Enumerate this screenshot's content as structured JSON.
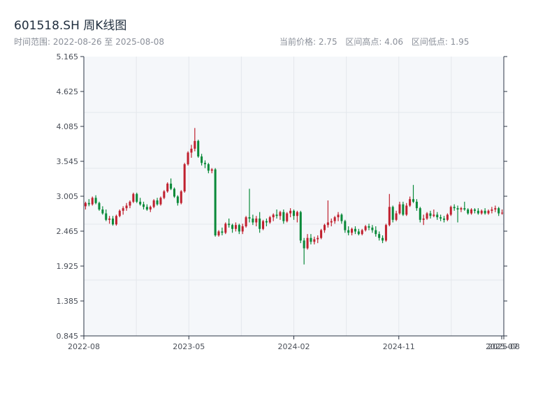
{
  "header": {
    "title": "601518.SH 周K线图",
    "range_text": "时间范围: 2022-08-26 至 2025-08-08",
    "current_price_text": "当前价格: 2.75",
    "range_high_text": "区间高点: 4.06",
    "range_low_text": "区间低点: 1.95"
  },
  "chart_data": {
    "type": "candlestick",
    "title": "601518.SH 周K线图",
    "ylim": [
      0.845,
      5.165
    ],
    "y_ticks": [
      "5.165",
      "4.625",
      "4.085",
      "3.545",
      "3.005",
      "2.465",
      "1.925",
      "1.385",
      "0.845"
    ],
    "x_ticks": [
      {
        "label": "2022-08",
        "t": 0.0
      },
      {
        "label": "2023-05",
        "t": 0.25
      },
      {
        "label": "2024-02",
        "t": 0.5
      },
      {
        "label": "2024-11",
        "t": 0.75
      },
      {
        "label": "2025-07",
        "t": 0.995
      },
      {
        "label": "2025-08",
        "t": 1.0
      }
    ],
    "grid": true,
    "colors": {
      "up": "#c0212f",
      "down": "#0a8a3a",
      "plot_bg": "#f5f7fa",
      "grid": "#e4e7ec",
      "axis": "#2b3445"
    },
    "candles": [
      [
        2.85,
        2.92,
        2.8,
        2.9
      ],
      [
        2.9,
        2.96,
        2.85,
        2.88
      ],
      [
        2.88,
        3.0,
        2.86,
        2.98
      ],
      [
        2.98,
        3.02,
        2.88,
        2.9
      ],
      [
        2.9,
        2.92,
        2.78,
        2.8
      ],
      [
        2.8,
        2.85,
        2.72,
        2.74
      ],
      [
        2.74,
        2.8,
        2.62,
        2.64
      ],
      [
        2.64,
        2.7,
        2.58,
        2.66
      ],
      [
        2.66,
        2.7,
        2.55,
        2.57
      ],
      [
        2.57,
        2.72,
        2.55,
        2.7
      ],
      [
        2.7,
        2.8,
        2.68,
        2.78
      ],
      [
        2.78,
        2.85,
        2.72,
        2.82
      ],
      [
        2.82,
        2.9,
        2.78,
        2.86
      ],
      [
        2.86,
        2.94,
        2.82,
        2.92
      ],
      [
        2.92,
        3.06,
        2.9,
        3.04
      ],
      [
        3.04,
        3.06,
        2.9,
        2.92
      ],
      [
        2.92,
        2.98,
        2.86,
        2.88
      ],
      [
        2.88,
        2.92,
        2.8,
        2.84
      ],
      [
        2.84,
        2.88,
        2.78,
        2.8
      ],
      [
        2.8,
        2.86,
        2.76,
        2.84
      ],
      [
        2.84,
        2.96,
        2.82,
        2.94
      ],
      [
        2.94,
        2.98,
        2.86,
        2.88
      ],
      [
        2.88,
        3.0,
        2.86,
        2.98
      ],
      [
        2.98,
        3.1,
        2.96,
        3.08
      ],
      [
        3.08,
        3.22,
        3.06,
        3.2
      ],
      [
        3.2,
        3.28,
        3.1,
        3.12
      ],
      [
        3.12,
        3.14,
        2.98,
        3.0
      ],
      [
        3.0,
        3.02,
        2.86,
        2.9
      ],
      [
        2.9,
        3.1,
        2.88,
        3.08
      ],
      [
        3.08,
        3.52,
        3.06,
        3.5
      ],
      [
        3.5,
        3.7,
        3.48,
        3.68
      ],
      [
        3.68,
        3.8,
        3.6,
        3.74
      ],
      [
        3.74,
        4.06,
        3.7,
        3.86
      ],
      [
        3.86,
        3.88,
        3.6,
        3.62
      ],
      [
        3.62,
        3.66,
        3.48,
        3.52
      ],
      [
        3.52,
        3.56,
        3.44,
        3.5
      ],
      [
        3.5,
        3.52,
        3.36,
        3.4
      ],
      [
        3.4,
        3.44,
        3.36,
        3.42
      ],
      [
        3.42,
        3.44,
        2.38,
        2.4
      ],
      [
        2.4,
        2.48,
        2.38,
        2.46
      ],
      [
        2.46,
        2.52,
        2.4,
        2.44
      ],
      [
        2.44,
        2.6,
        2.42,
        2.58
      ],
      [
        2.58,
        2.66,
        2.52,
        2.56
      ],
      [
        2.56,
        2.58,
        2.44,
        2.5
      ],
      [
        2.5,
        2.6,
        2.46,
        2.56
      ],
      [
        2.56,
        2.58,
        2.42,
        2.46
      ],
      [
        2.46,
        2.58,
        2.42,
        2.54
      ],
      [
        2.54,
        2.7,
        2.52,
        2.68
      ],
      [
        2.68,
        3.12,
        2.6,
        2.66
      ],
      [
        2.66,
        2.72,
        2.56,
        2.6
      ],
      [
        2.6,
        2.7,
        2.54,
        2.66
      ],
      [
        2.66,
        2.76,
        2.44,
        2.5
      ],
      [
        2.5,
        2.64,
        2.48,
        2.62
      ],
      [
        2.62,
        2.66,
        2.54,
        2.6
      ],
      [
        2.6,
        2.7,
        2.58,
        2.68
      ],
      [
        2.68,
        2.74,
        2.62,
        2.72
      ],
      [
        2.72,
        2.8,
        2.66,
        2.7
      ],
      [
        2.7,
        2.78,
        2.64,
        2.76
      ],
      [
        2.76,
        2.8,
        2.58,
        2.62
      ],
      [
        2.62,
        2.76,
        2.6,
        2.74
      ],
      [
        2.74,
        2.82,
        2.68,
        2.78
      ],
      [
        2.78,
        2.8,
        2.64,
        2.7
      ],
      [
        2.7,
        2.78,
        2.6,
        2.76
      ],
      [
        2.76,
        2.78,
        2.28,
        2.32
      ],
      [
        2.32,
        2.36,
        1.95,
        2.2
      ],
      [
        2.2,
        2.42,
        2.18,
        2.36
      ],
      [
        2.36,
        2.42,
        2.26,
        2.3
      ],
      [
        2.3,
        2.38,
        2.26,
        2.34
      ],
      [
        2.34,
        2.4,
        2.28,
        2.36
      ],
      [
        2.36,
        2.5,
        2.34,
        2.48
      ],
      [
        2.48,
        2.58,
        2.44,
        2.56
      ],
      [
        2.56,
        2.94,
        2.52,
        2.6
      ],
      [
        2.6,
        2.66,
        2.54,
        2.62
      ],
      [
        2.62,
        2.7,
        2.58,
        2.68
      ],
      [
        2.68,
        2.76,
        2.62,
        2.72
      ],
      [
        2.72,
        2.74,
        2.58,
        2.62
      ],
      [
        2.62,
        2.64,
        2.44,
        2.48
      ],
      [
        2.48,
        2.54,
        2.4,
        2.44
      ],
      [
        2.44,
        2.52,
        2.4,
        2.5
      ],
      [
        2.5,
        2.54,
        2.42,
        2.46
      ],
      [
        2.46,
        2.5,
        2.4,
        2.42
      ],
      [
        2.42,
        2.5,
        2.4,
        2.48
      ],
      [
        2.48,
        2.56,
        2.46,
        2.54
      ],
      [
        2.54,
        2.58,
        2.48,
        2.52
      ],
      [
        2.52,
        2.56,
        2.44,
        2.48
      ],
      [
        2.48,
        2.54,
        2.38,
        2.42
      ],
      [
        2.42,
        2.46,
        2.32,
        2.36
      ],
      [
        2.36,
        2.4,
        2.28,
        2.32
      ],
      [
        2.32,
        2.58,
        2.3,
        2.56
      ],
      [
        2.56,
        3.04,
        2.54,
        2.84
      ],
      [
        2.84,
        2.86,
        2.6,
        2.64
      ],
      [
        2.64,
        2.78,
        2.62,
        2.74
      ],
      [
        2.74,
        2.92,
        2.72,
        2.88
      ],
      [
        2.88,
        2.92,
        2.7,
        2.72
      ],
      [
        2.72,
        2.9,
        2.7,
        2.86
      ],
      [
        2.86,
        3.0,
        2.84,
        2.96
      ],
      [
        2.96,
        3.18,
        2.9,
        2.92
      ],
      [
        2.92,
        2.96,
        2.78,
        2.82
      ],
      [
        2.82,
        2.84,
        2.6,
        2.64
      ],
      [
        2.64,
        2.72,
        2.56,
        2.66
      ],
      [
        2.66,
        2.76,
        2.64,
        2.74
      ],
      [
        2.74,
        2.78,
        2.66,
        2.7
      ],
      [
        2.7,
        2.8,
        2.68,
        2.72
      ],
      [
        2.72,
        2.76,
        2.64,
        2.68
      ],
      [
        2.68,
        2.72,
        2.62,
        2.66
      ],
      [
        2.66,
        2.7,
        2.6,
        2.64
      ],
      [
        2.64,
        2.74,
        2.62,
        2.72
      ],
      [
        2.72,
        2.86,
        2.7,
        2.84
      ],
      [
        2.84,
        2.88,
        2.78,
        2.82
      ],
      [
        2.82,
        2.86,
        2.6,
        2.8
      ],
      [
        2.8,
        2.84,
        2.76,
        2.82
      ],
      [
        2.82,
        2.92,
        2.78,
        2.8
      ],
      [
        2.8,
        2.82,
        2.72,
        2.74
      ],
      [
        2.74,
        2.82,
        2.72,
        2.8
      ],
      [
        2.8,
        2.82,
        2.74,
        2.78
      ],
      [
        2.78,
        2.82,
        2.72,
        2.74
      ],
      [
        2.74,
        2.8,
        2.72,
        2.78
      ],
      [
        2.78,
        2.82,
        2.72,
        2.74
      ],
      [
        2.74,
        2.8,
        2.72,
        2.78
      ],
      [
        2.78,
        2.84,
        2.74,
        2.8
      ],
      [
        2.8,
        2.86,
        2.76,
        2.82
      ],
      [
        2.82,
        2.84,
        2.7,
        2.74
      ],
      [
        2.74,
        2.8,
        2.72,
        2.75
      ]
    ]
  }
}
